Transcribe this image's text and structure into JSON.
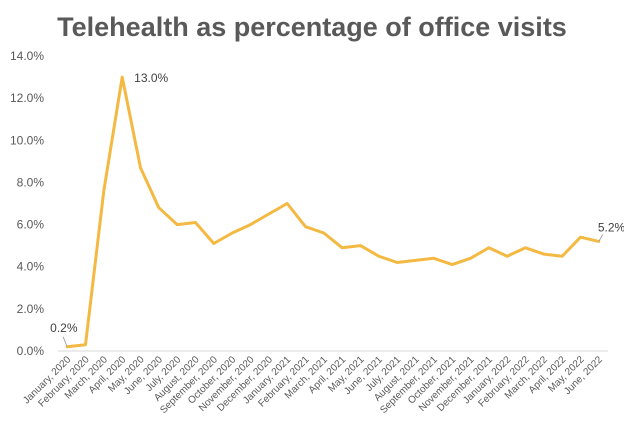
{
  "chart_data": {
    "type": "line",
    "title": "Telehealth as percentage of office visits",
    "xlabel": "",
    "ylabel": "",
    "ylim": [
      0,
      14
    ],
    "yticks": [
      "0.0%",
      "2.0%",
      "4.0%",
      "6.0%",
      "8.0%",
      "10.0%",
      "12.0%",
      "14.0%"
    ],
    "categories": [
      "January, 2020",
      "February, 2020",
      "March, 2020",
      "April, 2020",
      "May, 2020",
      "June, 2020",
      "July, 2020",
      "August, 2020",
      "September, 2020",
      "October, 2020",
      "November, 2020",
      "December, 2020",
      "January, 2021",
      "February, 2021",
      "March, 2021",
      "April, 2021",
      "May, 2021",
      "June, 2021",
      "July, 2021",
      "August, 2021",
      "September, 2021",
      "October, 2021",
      "November, 2021",
      "December, 2021",
      "January, 2022",
      "February, 2022",
      "March, 2022",
      "April, 2022",
      "May, 2022",
      "June, 2022"
    ],
    "series": [
      {
        "values": [
          0.2,
          0.3,
          7.6,
          13.0,
          8.7,
          6.8,
          6.0,
          6.1,
          5.1,
          5.6,
          6.0,
          6.5,
          7.0,
          5.9,
          5.6,
          4.9,
          5.0,
          4.5,
          4.2,
          4.3,
          4.4,
          4.1,
          4.4,
          4.9,
          4.5,
          4.9,
          4.6,
          4.5,
          5.4,
          5.2
        ]
      }
    ],
    "data_labels": [
      {
        "index": 0,
        "text": "0.2%"
      },
      {
        "index": 3,
        "text": "13.0%"
      },
      {
        "index": 29,
        "text": "5.2%"
      }
    ],
    "line_color": "#F4B942",
    "grid": false,
    "legend": "none"
  }
}
